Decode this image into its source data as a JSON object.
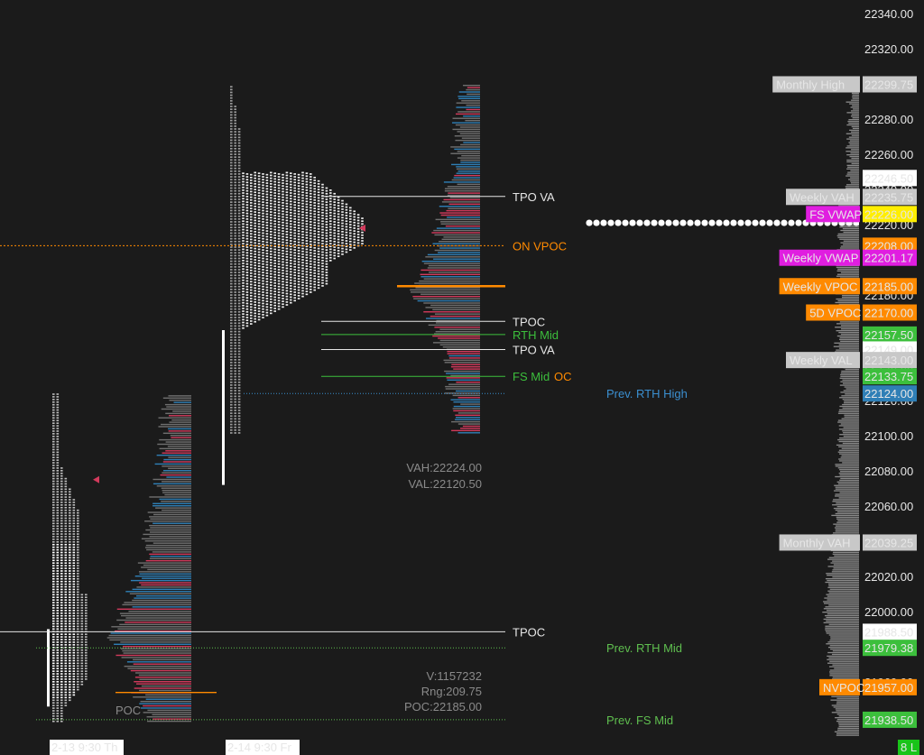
{
  "colors": {
    "background": "#1b1b1b",
    "white": "#e6e6e6",
    "gray": "#7a7a7a",
    "blue": "#2f7fb6",
    "red": "#d23a5c",
    "orange": "#ff8a00",
    "green": "#3cbf3c",
    "magenta": "#e01ee0",
    "yellow": "#ffee00",
    "label_gray": "#c8c8c8",
    "prev_blue": "#3b8fd0",
    "prev_green": "#5fbf4f"
  },
  "chart_data": {
    "type": "market-profile",
    "y_axis": {
      "min": 21925,
      "max": 22350,
      "ticks": [
        22340,
        22320,
        22300,
        22280,
        22260,
        22240,
        22220,
        22200,
        22180,
        22160,
        22140,
        22120,
        22100,
        22080,
        22060,
        22040,
        22020,
        22000,
        21980,
        21960,
        21940
      ],
      "tick_labels": [
        "22340.00",
        "22320.00",
        "22300.00",
        "22280.00",
        "22260.00",
        "22240.00",
        "22220.00",
        "22200.00",
        "22180.00",
        "22160.00",
        "22140.00",
        "22120.00",
        "22100.00",
        "22080.00",
        "22060.00",
        "22040.00",
        "22020.00",
        "22000.00",
        "21980.00",
        "21960.00",
        "21940.00"
      ]
    },
    "x_labels": [
      {
        "text": "2-13  9:30 Th"
      },
      {
        "text": "2-14  9:30 Fr"
      }
    ],
    "sessions": [
      {
        "name": "2-13",
        "low": 21938,
        "high": 22124,
        "poc": 21988.5,
        "ib_low": 21946,
        "ib_high": 21990
      },
      {
        "name": "2-14",
        "low": 22112,
        "high": 22300,
        "poc": 22165,
        "va_high": 22224,
        "va_low": 22120.5,
        "ib_low": 22112,
        "ib_high": 22160
      }
    ],
    "reference_lines": [
      {
        "text": "TPO VA",
        "price": 22236,
        "color": "#e6e6e6"
      },
      {
        "text": "ON VPOC",
        "price": 22208,
        "color": "#ff8a00"
      },
      {
        "text": "TPOC",
        "price": 22165,
        "color": "#e6e6e6"
      },
      {
        "text": "RTH Mid",
        "price": 22157.5,
        "color": "#3cbf3c"
      },
      {
        "text": "TPO VA",
        "price": 22149,
        "color": "#e6e6e6"
      },
      {
        "text": "FS Mid",
        "price": 22133.75,
        "color": "#3cbf3c"
      },
      {
        "text": "OC",
        "price": 22133.75,
        "color": "#ff8a00"
      },
      {
        "text": "Prev. RTH High",
        "price": 22124,
        "color": "#3b8fd0"
      },
      {
        "text": "TPOC",
        "price": 21988.5,
        "color": "#e6e6e6"
      },
      {
        "text": "Prev. RTH Mid",
        "price": 21979.38,
        "color": "#5fbf4f"
      },
      {
        "text": "Prev. FS Mid",
        "price": 21938.5,
        "color": "#5fbf4f"
      }
    ],
    "stats_top": [
      "VAH:22224.00",
      "VAL:22120.50"
    ],
    "stats_bottom": [
      "V:1157232",
      "Rng:209.75",
      "POC:22185.00"
    ],
    "poc_text": "POC",
    "price_tags": [
      {
        "label": "Monthly High",
        "value": "22299.75",
        "price": 22299.75,
        "label_bg": "#c8c8c8",
        "value_bg": "#c8c8c8"
      },
      {
        "label": "",
        "value": "22246.50",
        "price": 22246.5,
        "label_bg": "",
        "value_bg": "#ffffff"
      },
      {
        "label": "Weekly VAH",
        "value": "22235.75",
        "price": 22235.75,
        "label_bg": "#c8c8c8",
        "value_bg": "#c8c8c8"
      },
      {
        "label": "FS VWAP",
        "value": "22226.00",
        "price": 22226,
        "label_bg": "#e01ee0",
        "value_bg": "#ffee00"
      },
      {
        "label": "",
        "value": "22208.00",
        "price": 22208,
        "label_bg": "",
        "value_bg": "#ff8a00"
      },
      {
        "label": "Weekly VWAP",
        "value": "22201.17",
        "price": 22201.17,
        "label_bg": "#e01ee0",
        "value_bg": "#e01ee0"
      },
      {
        "label": "Weekly VPOC",
        "value": "22185.00",
        "price": 22185,
        "label_bg": "#ff8a00",
        "value_bg": "#ff8a00"
      },
      {
        "label": "5D VPOC",
        "value": "22170.00",
        "price": 22170,
        "label_bg": "#ff8a00",
        "value_bg": "#ff8a00"
      },
      {
        "label": "",
        "value": "22157.50",
        "price": 22157.5,
        "label_bg": "",
        "value_bg": "#3cbf3c"
      },
      {
        "label": "",
        "value": "22149.00",
        "price": 22149,
        "label_bg": "",
        "value_bg": "#ffffff"
      },
      {
        "label": "Weekly VAL",
        "value": "22143.00",
        "price": 22143,
        "label_bg": "#c8c8c8",
        "value_bg": "#c8c8c8"
      },
      {
        "label": "",
        "value": "22133.75",
        "price": 22133.75,
        "label_bg": "",
        "value_bg": "#3cbf3c"
      },
      {
        "label": "",
        "value": "22124.00",
        "price": 22124,
        "label_bg": "",
        "value_bg": "#2f7fb6"
      },
      {
        "label": "Monthly VAH",
        "value": "22039.25",
        "price": 22039.25,
        "label_bg": "#c8c8c8",
        "value_bg": "#c8c8c8"
      },
      {
        "label": "",
        "value": "21988.50",
        "price": 21988.5,
        "label_bg": "",
        "value_bg": "#ffffff"
      },
      {
        "label": "",
        "value": "21979.38",
        "price": 21979.38,
        "label_bg": "",
        "value_bg": "#3cbf3c"
      },
      {
        "label": "NVPOC",
        "value": "21957.00",
        "price": 21957,
        "label_bg": "#ff8a00",
        "value_bg": "#ff8a00"
      },
      {
        "label": "",
        "value": "21938.50",
        "price": 21938.5,
        "label_bg": "",
        "value_bg": "#3cbf3c"
      }
    ],
    "vwap_dots_price": 22221,
    "badge": "8 L"
  }
}
